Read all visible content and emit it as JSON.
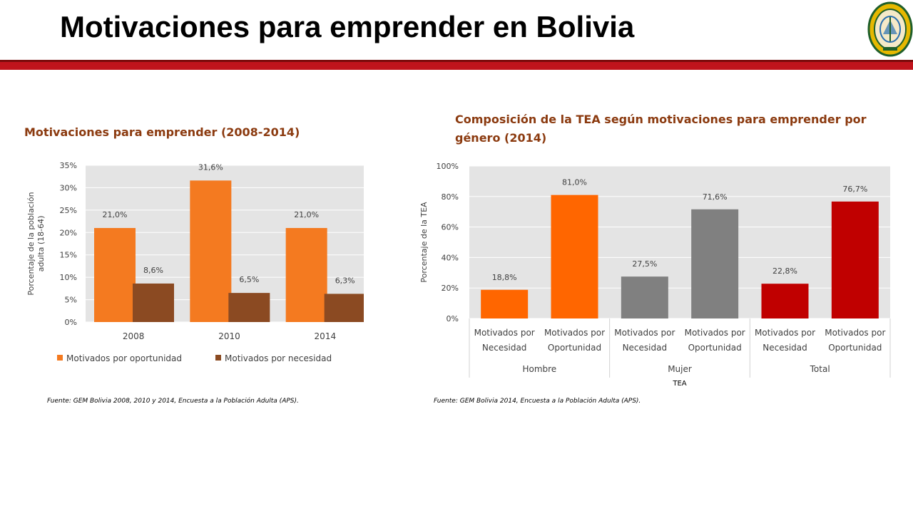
{
  "header": {
    "title": "Motivaciones para emprender en Bolivia",
    "rule_color": "#c0141c"
  },
  "logo": {
    "icon": "university-seal-icon"
  },
  "chart_data": [
    {
      "type": "bar",
      "title": "Motivaciones para emprender (2008-2014)",
      "xlabel": "",
      "ylabel": "Porcentaje de la población adulta (18-64)",
      "categories": [
        "2008",
        "2010",
        "2014"
      ],
      "series": [
        {
          "name": "Motivados por oportunidad",
          "color": "#f47a20",
          "values": [
            21.0,
            31.6,
            21.0
          ],
          "labels": [
            "21,0%",
            "31,6%",
            "21,0%"
          ]
        },
        {
          "name": "Motivados por necesidad",
          "color": "#8b4a22",
          "values": [
            8.6,
            6.5,
            6.3
          ],
          "labels": [
            "8,6%",
            "6,5%",
            "6,3%"
          ]
        }
      ],
      "ylim": [
        0,
        35
      ],
      "yticks": [
        "0%",
        "5%",
        "10%",
        "15%",
        "20%",
        "25%",
        "30%",
        "35%"
      ],
      "grid": true,
      "legend": "bottom",
      "source": "Fuente: GEM Bolivia 2008, 2010 y 2014, Encuesta a la Población Adulta (APS)."
    },
    {
      "type": "bar",
      "title": "Composición  de la TEA según motivaciones para emprender por género (2014)",
      "xlabel": "TEA",
      "ylabel": "Porcentaje de la TEA",
      "groups": [
        "Hombre",
        "Mujer",
        "Total"
      ],
      "bars": [
        {
          "group": "Hombre",
          "category": [
            "Motivados por",
            "Necesidad"
          ],
          "value": 18.8,
          "label": "18,8%",
          "color": "#ff6600"
        },
        {
          "group": "Hombre",
          "category": [
            "Motivados por",
            "Oportunidad"
          ],
          "value": 81.0,
          "label": "81,0%",
          "color": "#ff6600"
        },
        {
          "group": "Mujer",
          "category": [
            "Motivados por",
            "Necesidad"
          ],
          "value": 27.5,
          "label": "27,5%",
          "color": "#808080"
        },
        {
          "group": "Mujer",
          "category": [
            "Motivados por",
            "Oportunidad"
          ],
          "value": 71.6,
          "label": "71,6%",
          "color": "#808080"
        },
        {
          "group": "Total",
          "category": [
            "Motivados por",
            "Necesidad"
          ],
          "value": 22.8,
          "label": "22,8%",
          "color": "#c00000"
        },
        {
          "group": "Total",
          "category": [
            "Motivados por",
            "Oportunidad"
          ],
          "value": 76.7,
          "label": "76,7%",
          "color": "#c00000"
        }
      ],
      "ylim": [
        0,
        100
      ],
      "yticks": [
        "0%",
        "20%",
        "40%",
        "60%",
        "80%",
        "100%"
      ],
      "grid": true,
      "legend": "none",
      "source": "Fuente: GEM Bolivia 2014, Encuesta a la Población Adulta (APS)."
    }
  ]
}
